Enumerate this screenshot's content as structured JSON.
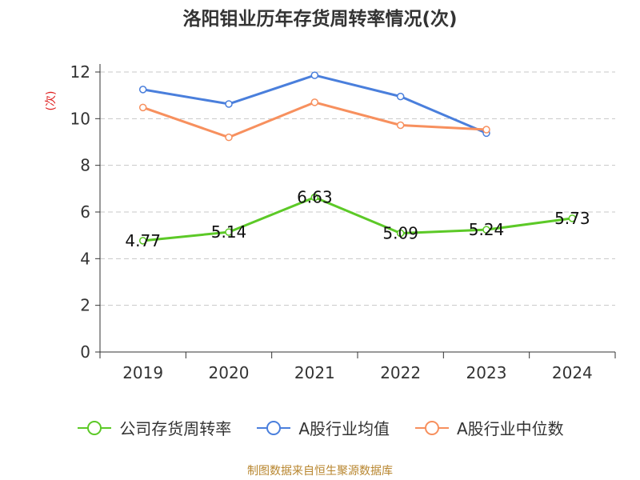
{
  "chart_data": {
    "type": "line",
    "title": "洛阳钼业历年存货周转率情况(次)",
    "ylabel": "(次)",
    "categories": [
      "2019",
      "2020",
      "2021",
      "2022",
      "2023",
      "2024"
    ],
    "ylim": [
      0,
      12
    ],
    "yticks": [
      0,
      2,
      4,
      6,
      8,
      10,
      12
    ],
    "grid": true,
    "legend_position": "bottom",
    "series": [
      {
        "name": "公司存货周转率",
        "color": "#5cc927",
        "values": [
          4.77,
          5.14,
          6.63,
          5.09,
          5.24,
          5.73
        ],
        "labels": [
          "4.77",
          "5.14",
          "6.63",
          "5.09",
          "5.24",
          "5.73"
        ]
      },
      {
        "name": "A股行业均值",
        "color": "#4a7fdc",
        "values": [
          11.25,
          10.63,
          11.86,
          10.95,
          9.38,
          null
        ]
      },
      {
        "name": "A股行业中位数",
        "color": "#f7905e",
        "values": [
          10.48,
          9.2,
          10.7,
          9.72,
          9.53,
          null
        ]
      }
    ]
  },
  "source": "制图数据来自恒生聚源数据库"
}
